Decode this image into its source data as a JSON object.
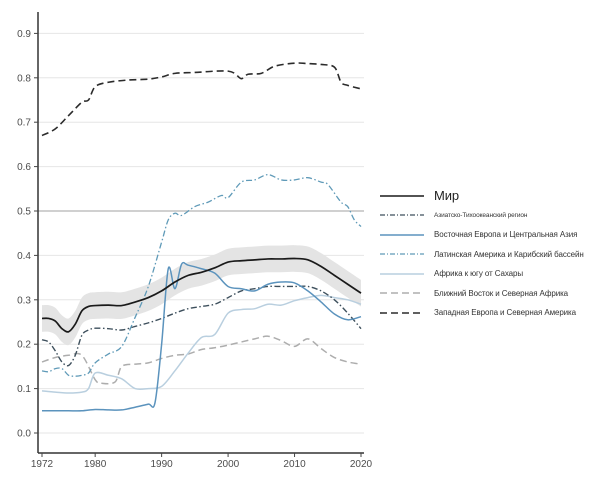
{
  "chart_data": {
    "type": "line",
    "title": "",
    "xlabel": "",
    "ylabel": "",
    "xlim": [
      1972,
      2020
    ],
    "ylim": [
      -0.04,
      0.95
    ],
    "x_ticks": [
      1972,
      1980,
      1990,
      2000,
      2010,
      2020
    ],
    "x_tick_labels": [
      "1972",
      "1980",
      "1990",
      "2000",
      "2010",
      "2020"
    ],
    "y_ticks": [
      0.0,
      0.1,
      0.2,
      0.3,
      0.4,
      0.5,
      0.6,
      0.7,
      0.8,
      0.9
    ],
    "y_tick_labels": [
      "0.0",
      "0.1",
      "0.2",
      "0.3",
      "0.4",
      "0.5",
      "0.6",
      "0.7",
      "0.8",
      "0.9"
    ],
    "grid": "horizontal",
    "reference_line": 0.5,
    "legend_position": "right",
    "series": [
      {
        "key": "world",
        "name": "Мир",
        "style": "solid",
        "color": "#1a1a1a",
        "confidence_band": true,
        "band_halfwidth": 0.03,
        "x": [
          1972,
          1973,
          1974,
          1975,
          1976,
          1977,
          1978,
          1979,
          1980,
          1982,
          1984,
          1986,
          1988,
          1990,
          1992,
          1994,
          1996,
          1998,
          2000,
          2002,
          2004,
          2006,
          2008,
          2010,
          2012,
          2014,
          2016,
          2018,
          2020
        ],
        "values": [
          0.258,
          0.258,
          0.252,
          0.235,
          0.228,
          0.245,
          0.275,
          0.285,
          0.287,
          0.288,
          0.287,
          0.295,
          0.305,
          0.32,
          0.34,
          0.355,
          0.362,
          0.372,
          0.385,
          0.388,
          0.39,
          0.392,
          0.392,
          0.393,
          0.39,
          0.375,
          0.355,
          0.335,
          0.315
        ]
      },
      {
        "key": "asia_pacific",
        "name": "Азиатско-Тихоокеанский регион",
        "style": "dashdot",
        "color": "#3d4f5c",
        "x": [
          1972,
          1973,
          1974,
          1975,
          1976,
          1977,
          1978,
          1979,
          1980,
          1982,
          1984,
          1986,
          1988,
          1990,
          1992,
          1994,
          1996,
          1998,
          2000,
          2002,
          2004,
          2006,
          2008,
          2010,
          2012,
          2014,
          2016,
          2018,
          2020
        ],
        "values": [
          0.21,
          0.205,
          0.185,
          0.16,
          0.152,
          0.175,
          0.22,
          0.232,
          0.236,
          0.235,
          0.232,
          0.24,
          0.248,
          0.258,
          0.27,
          0.28,
          0.285,
          0.29,
          0.305,
          0.32,
          0.325,
          0.33,
          0.33,
          0.33,
          0.33,
          0.32,
          0.3,
          0.27,
          0.235
        ]
      },
      {
        "key": "eastern_europe",
        "name": "Восточная Европа и Центральная Азия",
        "style": "solid",
        "color": "#5b93bd",
        "x": [
          1972,
          1974,
          1976,
          1978,
          1980,
          1982,
          1984,
          1986,
          1988,
          1989,
          1990,
          1991,
          1992,
          1993,
          1994,
          1996,
          1998,
          2000,
          2002,
          2004,
          2006,
          2008,
          2010,
          2012,
          2014,
          2016,
          2018,
          2020
        ],
        "values": [
          0.05,
          0.05,
          0.05,
          0.05,
          0.053,
          0.052,
          0.052,
          0.058,
          0.065,
          0.068,
          0.2,
          0.37,
          0.325,
          0.38,
          0.378,
          0.37,
          0.36,
          0.33,
          0.325,
          0.32,
          0.335,
          0.34,
          0.338,
          0.32,
          0.295,
          0.268,
          0.255,
          0.262
        ]
      },
      {
        "key": "latin_america",
        "name": "Латинская Америка и Карибский бассейн",
        "style": "dashdot",
        "color": "#5f9ab8",
        "x": [
          1972,
          1973,
          1974,
          1975,
          1976,
          1977,
          1978,
          1979,
          1980,
          1982,
          1984,
          1986,
          1988,
          1990,
          1991,
          1992,
          1993,
          1995,
          1997,
          1999,
          2000,
          2002,
          2004,
          2006,
          2008,
          2010,
          2012,
          2014,
          2015,
          2017,
          2018,
          2019,
          2020
        ],
        "values": [
          0.14,
          0.138,
          0.145,
          0.145,
          0.13,
          0.128,
          0.13,
          0.135,
          0.158,
          0.178,
          0.195,
          0.26,
          0.33,
          0.43,
          0.48,
          0.495,
          0.49,
          0.51,
          0.52,
          0.535,
          0.53,
          0.565,
          0.57,
          0.582,
          0.57,
          0.57,
          0.575,
          0.565,
          0.56,
          0.52,
          0.51,
          0.48,
          0.465
        ]
      },
      {
        "key": "sub_saharan_africa",
        "name": "Африка к югу от Сахары",
        "style": "solid",
        "color": "#b9cfdf",
        "x": [
          1972,
          1974,
          1976,
          1978,
          1979,
          1980,
          1982,
          1984,
          1986,
          1988,
          1990,
          1992,
          1994,
          1996,
          1998,
          2000,
          2002,
          2004,
          2006,
          2008,
          2010,
          2012,
          2014,
          2016,
          2018,
          2020
        ],
        "values": [
          0.095,
          0.092,
          0.09,
          0.092,
          0.1,
          0.135,
          0.13,
          0.122,
          0.1,
          0.1,
          0.105,
          0.14,
          0.18,
          0.215,
          0.222,
          0.27,
          0.278,
          0.28,
          0.29,
          0.288,
          0.298,
          0.305,
          0.31,
          0.305,
          0.3,
          0.29
        ]
      },
      {
        "key": "mena",
        "name": "Ближний Восток и Северная Африка",
        "style": "dashed",
        "color": "#adadad",
        "x": [
          1972,
          1974,
          1976,
          1978,
          1980,
          1981,
          1983,
          1984,
          1986,
          1988,
          1990,
          1992,
          1994,
          1996,
          1998,
          2000,
          2002,
          2004,
          2006,
          2008,
          2010,
          2012,
          2014,
          2016,
          2018,
          2020
        ],
        "values": [
          0.16,
          0.17,
          0.175,
          0.175,
          0.12,
          0.112,
          0.115,
          0.15,
          0.155,
          0.158,
          0.168,
          0.175,
          0.178,
          0.188,
          0.192,
          0.198,
          0.205,
          0.212,
          0.218,
          0.208,
          0.195,
          0.212,
          0.19,
          0.17,
          0.16,
          0.155
        ]
      },
      {
        "key": "western_europe",
        "name": "Западная Европа и Северная Америка",
        "style": "dashed",
        "color": "#2b2b2b",
        "x": [
          1972,
          1974,
          1976,
          1978,
          1979,
          1980,
          1982,
          1985,
          1988,
          1990,
          1992,
          1995,
          1998,
          2000,
          2001,
          2002,
          2003,
          2005,
          2007,
          2010,
          2012,
          2014,
          2016,
          2017,
          2018,
          2020
        ],
        "values": [
          0.67,
          0.685,
          0.715,
          0.745,
          0.75,
          0.78,
          0.79,
          0.795,
          0.797,
          0.802,
          0.81,
          0.812,
          0.815,
          0.815,
          0.81,
          0.798,
          0.808,
          0.81,
          0.826,
          0.833,
          0.832,
          0.83,
          0.824,
          0.79,
          0.783,
          0.775
        ]
      }
    ]
  },
  "legend": {
    "items": [
      {
        "key": "world",
        "label": "Мир"
      },
      {
        "key": "asia_pacific",
        "label": "Азиатско-Тихоокеанский регион"
      },
      {
        "key": "eastern_europe",
        "label": "Восточная Европа и Центральная Азия"
      },
      {
        "key": "latin_america",
        "label": "Латинская Америка и Карибский бассейн"
      },
      {
        "key": "sub_saharan_africa",
        "label": "Африка к югу от Сахары"
      },
      {
        "key": "mena",
        "label": "Ближний Восток и Северная Африка"
      },
      {
        "key": "western_europe",
        "label": "Западная Европа и Северная Америка"
      }
    ]
  }
}
